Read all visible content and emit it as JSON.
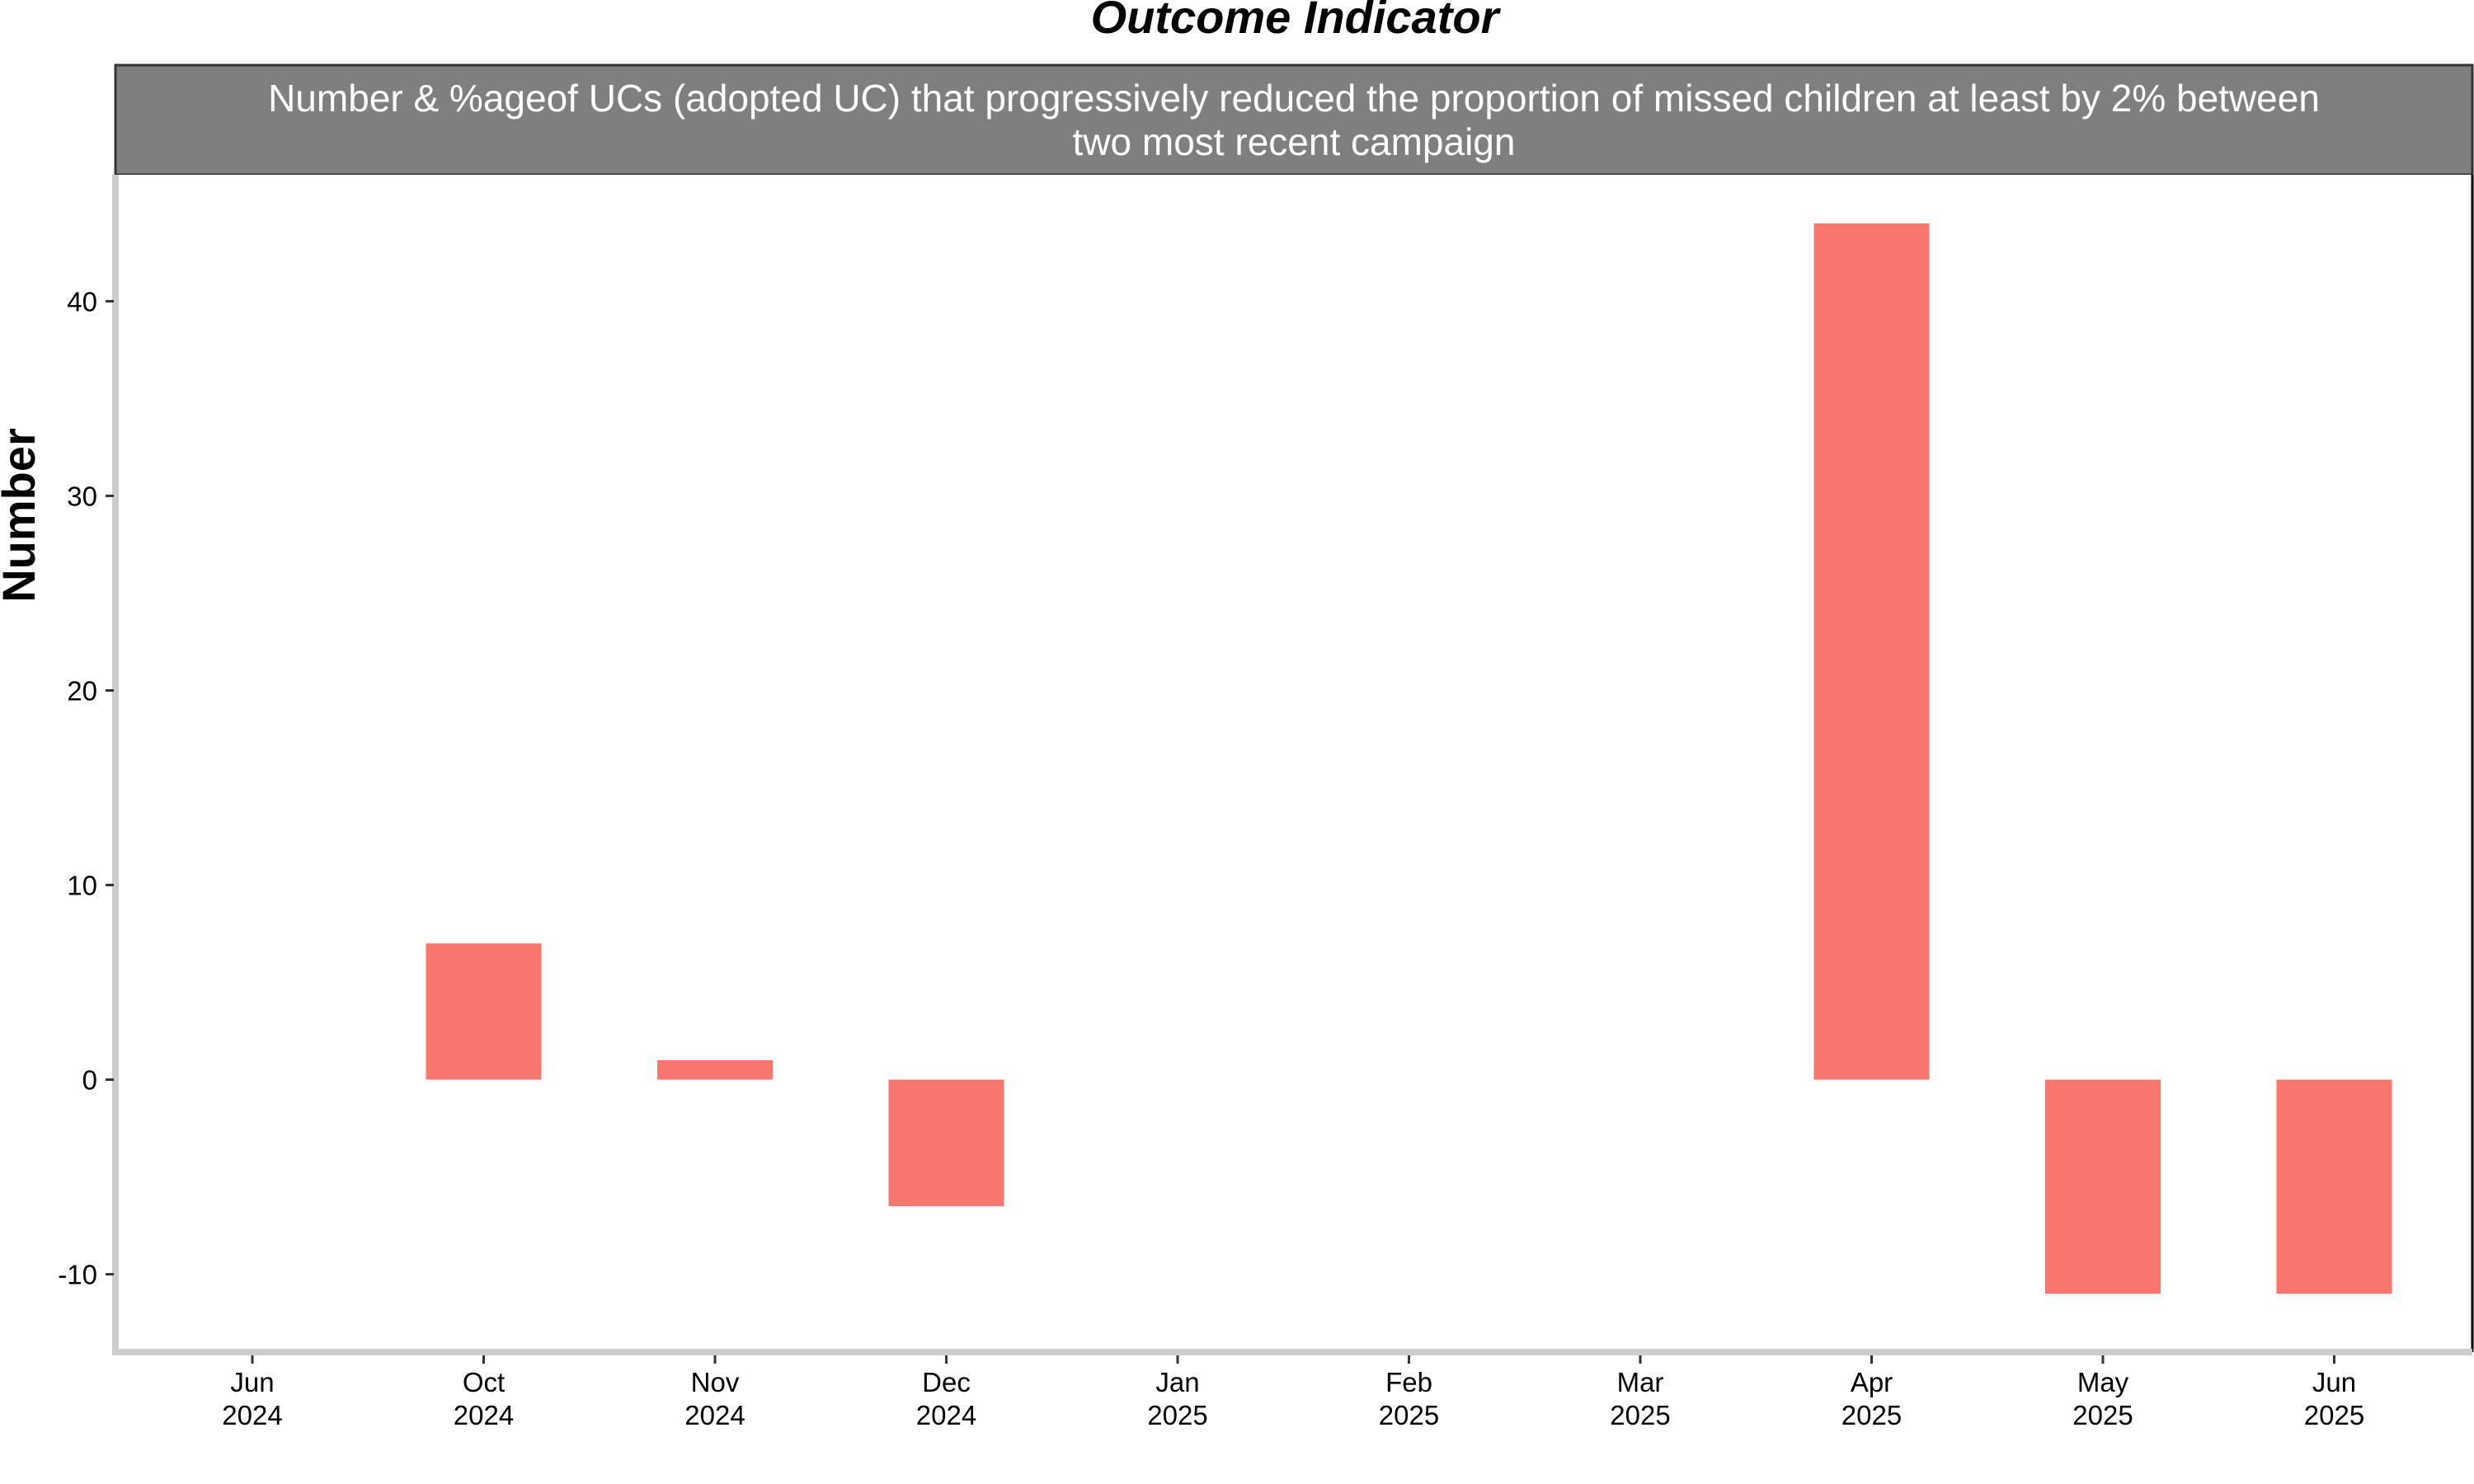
{
  "chart_data": {
    "type": "bar",
    "title": "Outcome Indicator",
    "subtitle_lines": [
      "Number & %ageof UCs (adopted UC) that progressively reduced the proportion of missed children at least by 2% between",
      "two most recent campaign"
    ],
    "xlabel": "",
    "ylabel": "Number",
    "ylim": [
      -14,
      46.5
    ],
    "yticks": [
      -10,
      0,
      10,
      20,
      30,
      40
    ],
    "grid": false,
    "legend": "none",
    "categories": [
      [
        "Jun",
        "2024"
      ],
      [
        "Oct",
        "2024"
      ],
      [
        "Nov",
        "2024"
      ],
      [
        "Dec",
        "2024"
      ],
      [
        "Jan",
        "2025"
      ],
      [
        "Feb",
        "2025"
      ],
      [
        "Mar",
        "2025"
      ],
      [
        "Apr",
        "2025"
      ],
      [
        "May",
        "2025"
      ],
      [
        "Jun",
        "2025"
      ]
    ],
    "values": [
      null,
      7,
      1,
      -6.5,
      null,
      null,
      null,
      44,
      -11,
      -11
    ],
    "colors": {
      "bar": "#F8766D",
      "strip": "#7F7F7F",
      "axis": "#CCCCCC"
    }
  }
}
